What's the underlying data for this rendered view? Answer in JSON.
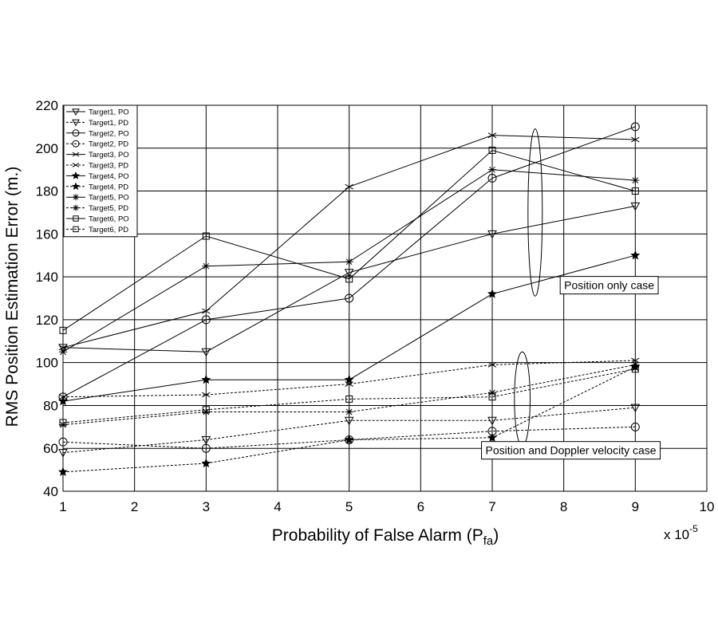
{
  "chart_data": {
    "type": "line",
    "title": "",
    "xlabel": "Probability of False Alarm (P",
    "xlabel_sub": "fa",
    "xlabel_close": ")",
    "ylabel": "RMS Position Estimation Error (m.)",
    "x_multiplier_base": "x 10",
    "x_multiplier_exp": "-5",
    "xlim": [
      1,
      10
    ],
    "ylim": [
      40,
      220
    ],
    "x_ticks": [
      1,
      2,
      3,
      4,
      5,
      6,
      7,
      8,
      9,
      10
    ],
    "y_ticks": [
      40,
      60,
      80,
      100,
      120,
      140,
      160,
      180,
      200,
      220
    ],
    "grid": true,
    "legend_position": "top-left",
    "x": [
      1,
      3,
      5,
      7,
      9
    ],
    "series": [
      {
        "name": "Target1, PO",
        "marker": "triangle-down",
        "dash": "solid",
        "values": [
          107,
          105,
          142,
          160,
          173
        ]
      },
      {
        "name": "Target1, PD",
        "marker": "triangle-down",
        "dash": "dashed",
        "values": [
          58,
          64,
          73,
          73,
          79
        ]
      },
      {
        "name": "Target2, PO",
        "marker": "circle",
        "dash": "solid",
        "values": [
          84,
          120,
          130,
          186,
          210
        ]
      },
      {
        "name": "Target2, PD",
        "marker": "circle",
        "dash": "dashed",
        "values": [
          63,
          60,
          64,
          68,
          70
        ]
      },
      {
        "name": "Target3, PO",
        "marker": "x",
        "dash": "solid",
        "values": [
          107,
          124,
          182,
          206,
          204
        ]
      },
      {
        "name": "Target3, PD",
        "marker": "x",
        "dash": "dashed",
        "values": [
          84,
          85,
          90,
          99,
          101
        ]
      },
      {
        "name": "Target4, PO",
        "marker": "star",
        "dash": "solid",
        "values": [
          82,
          92,
          92,
          132,
          150
        ]
      },
      {
        "name": "Target4, PD",
        "marker": "star",
        "dash": "dashed",
        "values": [
          49,
          53,
          64,
          65,
          98
        ]
      },
      {
        "name": "Target5, PO",
        "marker": "asterisk",
        "dash": "solid",
        "values": [
          105,
          145,
          147,
          190,
          185
        ]
      },
      {
        "name": "Target5, PD",
        "marker": "asterisk",
        "dash": "dashed",
        "values": [
          71,
          77,
          77,
          86,
          99
        ]
      },
      {
        "name": "Target6, PO",
        "marker": "square",
        "dash": "solid",
        "values": [
          115,
          159,
          139,
          199,
          180
        ]
      },
      {
        "name": "Target6, PD",
        "marker": "square",
        "dash": "dashed",
        "values": [
          72,
          78,
          83,
          84,
          97
        ]
      }
    ],
    "annotations": [
      {
        "text": "Position only case",
        "ellipse_center": [
          7.6,
          170
        ],
        "ellipse_radius": [
          0.1,
          39
        ],
        "box_anchor": [
          7.95,
          132
        ]
      },
      {
        "text": "Position and Doppler velocity case",
        "ellipse_center": [
          7.42,
          83
        ],
        "ellipse_radius": [
          0.11,
          22
        ],
        "box_anchor": [
          6.85,
          55
        ]
      }
    ]
  }
}
